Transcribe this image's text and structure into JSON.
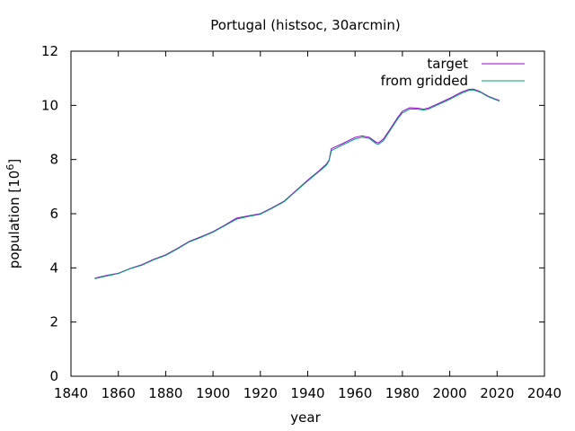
{
  "chart_data": {
    "type": "line",
    "title": "Portugal (histsoc, 30arcmin)",
    "xlabel": "year",
    "ylabel_main": "population [10",
    "ylabel_sup": "6",
    "ylabel_close": "]",
    "xlim": [
      1840,
      2040
    ],
    "ylim": [
      0,
      12
    ],
    "xticks": [
      1840,
      1860,
      1880,
      1900,
      1920,
      1940,
      1960,
      1980,
      2000,
      2020,
      2040
    ],
    "yticks": [
      0,
      2,
      4,
      6,
      8,
      10,
      12
    ],
    "grid": false,
    "legend_position": "top-right",
    "series": [
      {
        "name": "target",
        "color": "#9400d3",
        "x": [
          1850,
          1855,
          1860,
          1865,
          1870,
          1875,
          1880,
          1885,
          1890,
          1895,
          1900,
          1905,
          1910,
          1915,
          1920,
          1925,
          1930,
          1935,
          1940,
          1945,
          1948,
          1949,
          1950,
          1955,
          1960,
          1963,
          1966,
          1969,
          1970,
          1972,
          1975,
          1978,
          1980,
          1983,
          1986,
          1989,
          1991,
          1995,
          2000,
          2005,
          2008,
          2010,
          2013,
          2016,
          2019,
          2021
        ],
        "y": [
          3.62,
          3.72,
          3.8,
          3.98,
          4.12,
          4.32,
          4.48,
          4.72,
          4.98,
          5.15,
          5.34,
          5.58,
          5.84,
          5.92,
          6.0,
          6.22,
          6.46,
          6.85,
          7.24,
          7.6,
          7.84,
          7.98,
          8.4,
          8.6,
          8.82,
          8.87,
          8.82,
          8.63,
          8.62,
          8.76,
          9.15,
          9.55,
          9.78,
          9.91,
          9.9,
          9.86,
          9.9,
          10.06,
          10.26,
          10.49,
          10.59,
          10.6,
          10.5,
          10.35,
          10.24,
          10.18
        ]
      },
      {
        "name": "from gridded",
        "color": "#009e73",
        "x": [
          1850,
          1855,
          1860,
          1865,
          1870,
          1875,
          1880,
          1885,
          1890,
          1895,
          1900,
          1905,
          1910,
          1915,
          1920,
          1925,
          1930,
          1935,
          1940,
          1945,
          1948,
          1949,
          1950,
          1955,
          1960,
          1963,
          1966,
          1969,
          1970,
          1972,
          1975,
          1978,
          1980,
          1983,
          1986,
          1989,
          1991,
          1995,
          2000,
          2005,
          2008,
          2010,
          2013,
          2016,
          2019,
          2021
        ],
        "y": [
          3.6,
          3.7,
          3.79,
          3.97,
          4.1,
          4.3,
          4.46,
          4.7,
          4.96,
          5.13,
          5.32,
          5.56,
          5.8,
          5.9,
          5.98,
          6.2,
          6.44,
          6.83,
          7.21,
          7.57,
          7.8,
          7.95,
          8.33,
          8.55,
          8.76,
          8.82,
          8.78,
          8.58,
          8.57,
          8.7,
          9.1,
          9.5,
          9.72,
          9.86,
          9.86,
          9.83,
          9.86,
          10.02,
          10.22,
          10.45,
          10.55,
          10.57,
          10.48,
          10.33,
          10.22,
          10.16
        ]
      }
    ]
  }
}
